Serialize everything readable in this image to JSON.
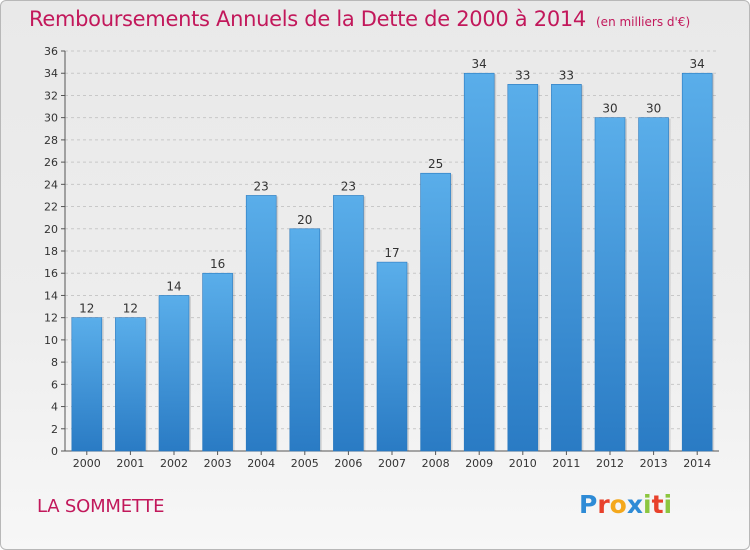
{
  "title": {
    "main": "Remboursements Annuels de la Dette de 2000 à 2014",
    "unit": "(en milliers d'€)"
  },
  "commune": "LA SOMMETTE",
  "logo": {
    "text": "Proxiti",
    "letters": [
      {
        "ch": "P",
        "color": "#2e8bd6"
      },
      {
        "ch": "r",
        "color": "#e8412c"
      },
      {
        "ch": "o",
        "color": "#f4a81c"
      },
      {
        "ch": "x",
        "color": "#2e8bd6"
      },
      {
        "ch": "i",
        "color": "#8cc63f"
      },
      {
        "ch": "t",
        "color": "#e8412c"
      },
      {
        "ch": "i",
        "color": "#8cc63f"
      }
    ]
  },
  "chart_data": {
    "type": "bar",
    "title": "Remboursements Annuels de la Dette de 2000 à 2014",
    "unit": "(en milliers d'€)",
    "categories": [
      "2000",
      "2001",
      "2002",
      "2003",
      "2004",
      "2005",
      "2006",
      "2007",
      "2008",
      "2009",
      "2010",
      "2011",
      "2012",
      "2013",
      "2014"
    ],
    "values": [
      12,
      12,
      14,
      16,
      23,
      20,
      23,
      17,
      25,
      34,
      33,
      33,
      30,
      30,
      34
    ],
    "ylim": [
      0,
      36
    ],
    "yticks": [
      0,
      2,
      4,
      6,
      8,
      10,
      12,
      14,
      16,
      18,
      20,
      22,
      24,
      26,
      28,
      30,
      32,
      34,
      36
    ],
    "grid": true,
    "bar_color": "#3b8fd6"
  }
}
